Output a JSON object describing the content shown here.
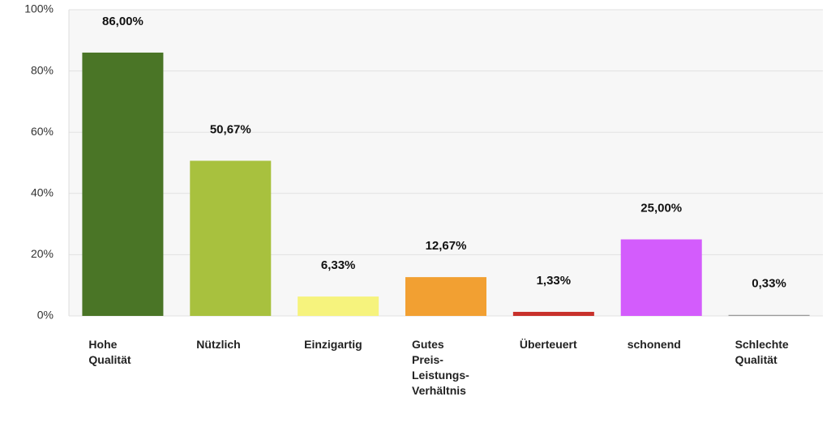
{
  "chart_data": {
    "type": "bar",
    "categories": [
      "Hohe Qualität",
      "Nützlich",
      "Einzigartig",
      "Gutes Preis-Leistungs-Verhältnis",
      "Überteuert",
      "schonend",
      "Schlechte Qualität"
    ],
    "values": [
      86,
      50.67,
      6.33,
      12.67,
      1.33,
      25,
      0.33
    ],
    "value_labels": [
      "86,00%",
      "50,67%",
      "6,33%",
      "12,67%",
      "1,33%",
      "25,00%",
      "0,33%"
    ],
    "colors": [
      "#4a7526",
      "#a8c13e",
      "#f6f37d",
      "#f2a032",
      "#c8312b",
      "#d35cfc",
      "#999999"
    ],
    "ylim": [
      0,
      100
    ],
    "yticks": [
      {
        "value": 0,
        "label": "0%"
      },
      {
        "value": 20,
        "label": "20%"
      },
      {
        "value": 40,
        "label": "40%"
      },
      {
        "value": 60,
        "label": "60%"
      },
      {
        "value": 80,
        "label": "80%"
      },
      {
        "value": 100,
        "label": "100%"
      }
    ],
    "grid": true
  }
}
